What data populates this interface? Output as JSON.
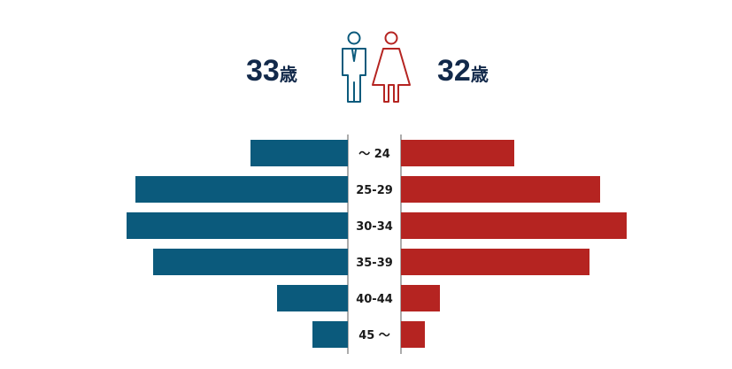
{
  "header": {
    "male_average": "33",
    "female_average": "32",
    "unit": "歳"
  },
  "icons": {
    "male": "male-figure-icon",
    "female": "female-figure-icon"
  },
  "colors": {
    "male": "#0b5a7c",
    "female": "#b52421",
    "axis": "#5a5a5a",
    "text_dark": "#12294a"
  },
  "chart_data": {
    "type": "bar",
    "orientation": "horizontal-butterfly",
    "categories": [
      "～ 24",
      "25-29",
      "30-34",
      "35-39",
      "40-44",
      "45 ～"
    ],
    "series": [
      {
        "values": [
          110,
          240,
          250,
          220,
          80,
          40
        ]
      },
      {
        "values": [
          128,
          225,
          255,
          213,
          44,
          27
        ]
      }
    ],
    "xlim": [
      0,
      260
    ]
  }
}
